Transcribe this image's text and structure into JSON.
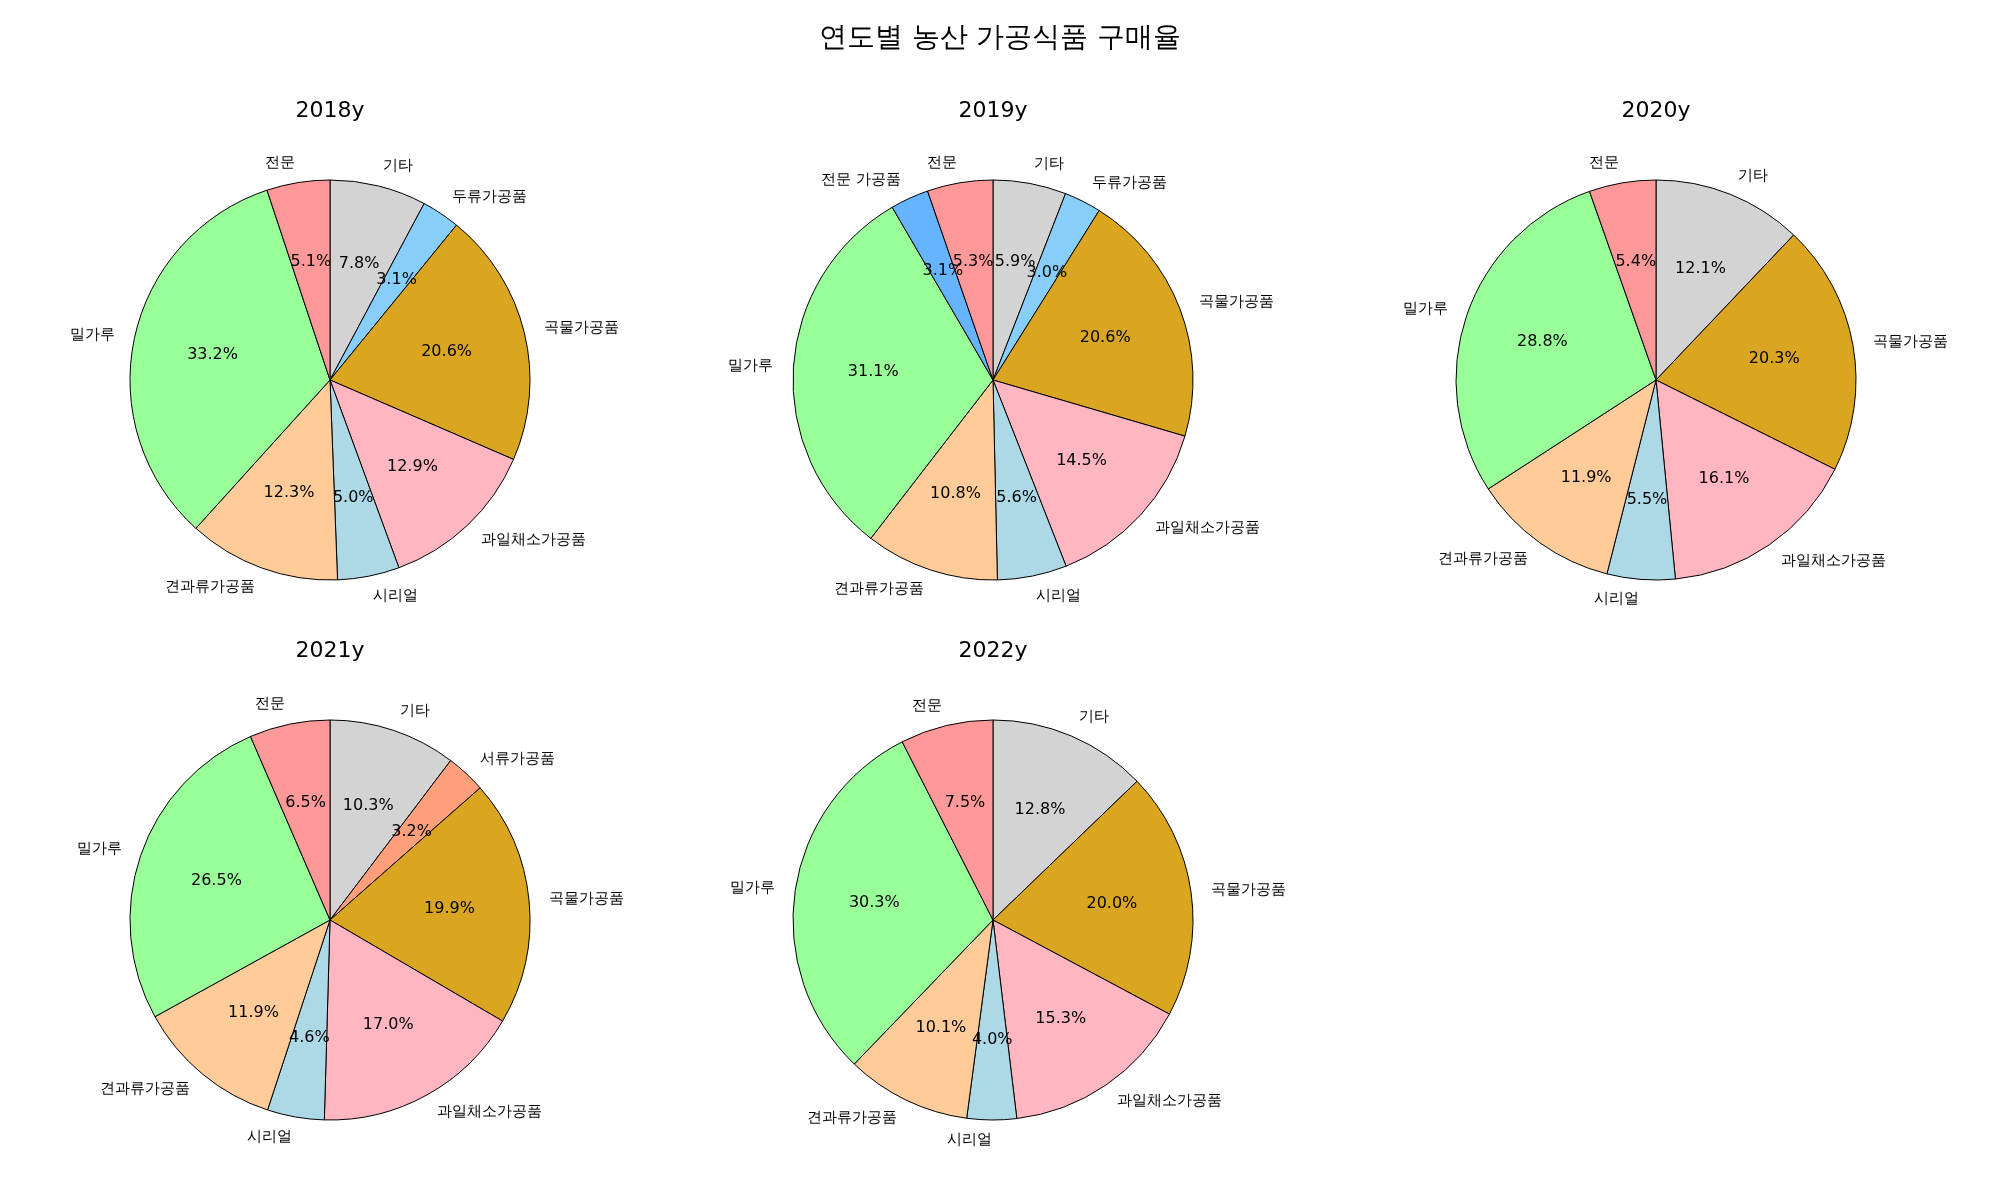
{
  "chart_data": [
    {
      "type": "pie",
      "title": "2018y",
      "annotations": [
        "연도별 농산 가공식품 구매율"
      ],
      "categories": [
        "기타",
        "두류가공품",
        "곡물가공품",
        "과일채소가공품",
        "시리얼",
        "견과류가공품",
        "밀가루",
        "전문"
      ],
      "values": [
        7.8,
        3.1,
        20.6,
        12.9,
        5.0,
        12.3,
        33.2,
        5.1
      ],
      "value_labels": [
        "7.8%",
        "3.1%",
        "20.6%",
        "12.9%",
        "5.0%",
        "12.3%",
        "33.2%",
        "5.1%"
      ],
      "colors": [
        "#d3d3d3",
        "#87cefa",
        "#daa520",
        "#ffb6c1",
        "#add8e6",
        "#ffcc99",
        "#99ff99",
        "#ff9999"
      ]
    },
    {
      "type": "pie",
      "title": "2019y",
      "categories": [
        "기타",
        "두류가공품",
        "곡물가공품",
        "과일채소가공품",
        "시리얼",
        "견과류가공품",
        "밀가루",
        "전문 가공품",
        "전문"
      ],
      "values": [
        5.9,
        3.0,
        20.6,
        14.5,
        5.6,
        10.8,
        31.1,
        3.1,
        5.3
      ],
      "value_labels": [
        "5.9%",
        "3.0%",
        "20.6%",
        "14.5%",
        "5.6%",
        "10.8%",
        "31.1%",
        "3.1%",
        "5.3%"
      ],
      "colors": [
        "#d3d3d3",
        "#87cefa",
        "#daa520",
        "#ffb6c1",
        "#add8e6",
        "#ffcc99",
        "#99ff99",
        "#66b3ff",
        "#ff9999"
      ]
    },
    {
      "type": "pie",
      "title": "2020y",
      "categories": [
        "기타",
        "곡물가공품",
        "과일채소가공품",
        "시리얼",
        "견과류가공품",
        "밀가루",
        "전문"
      ],
      "values": [
        12.1,
        20.3,
        16.1,
        5.5,
        11.9,
        28.8,
        5.4
      ],
      "value_labels": [
        "12.1%",
        "20.3%",
        "16.1%",
        "5.5%",
        "11.9%",
        "28.8%",
        "5.4%"
      ],
      "colors": [
        "#d3d3d3",
        "#daa520",
        "#ffb6c1",
        "#add8e6",
        "#ffcc99",
        "#99ff99",
        "#ff9999"
      ]
    },
    {
      "type": "pie",
      "title": "2021y",
      "categories": [
        "기타",
        "서류가공품",
        "곡물가공품",
        "과일채소가공품",
        "시리얼",
        "견과류가공품",
        "밀가루",
        "전문"
      ],
      "values": [
        10.3,
        3.2,
        19.9,
        17.0,
        4.6,
        11.9,
        26.5,
        6.5
      ],
      "value_labels": [
        "10.3%",
        "3.2%",
        "19.9%",
        "17.0%",
        "4.6%",
        "11.9%",
        "26.5%",
        "6.5%"
      ],
      "colors": [
        "#d3d3d3",
        "#ffa07a",
        "#daa520",
        "#ffb6c1",
        "#add8e6",
        "#ffcc99",
        "#99ff99",
        "#ff9999"
      ]
    },
    {
      "type": "pie",
      "title": "2022y",
      "categories": [
        "기타",
        "곡물가공품",
        "과일채소가공품",
        "시리얼",
        "견과류가공품",
        "밀가루",
        "전문"
      ],
      "values": [
        12.8,
        20.0,
        15.3,
        4.0,
        10.1,
        30.3,
        7.5
      ],
      "value_labels": [
        "12.8%",
        "20.0%",
        "15.3%",
        "4.0%",
        "10.1%",
        "30.3%",
        "7.5%"
      ],
      "colors": [
        "#d3d3d3",
        "#daa520",
        "#ffb6c1",
        "#add8e6",
        "#ffcc99",
        "#99ff99",
        "#ff9999"
      ]
    }
  ]
}
